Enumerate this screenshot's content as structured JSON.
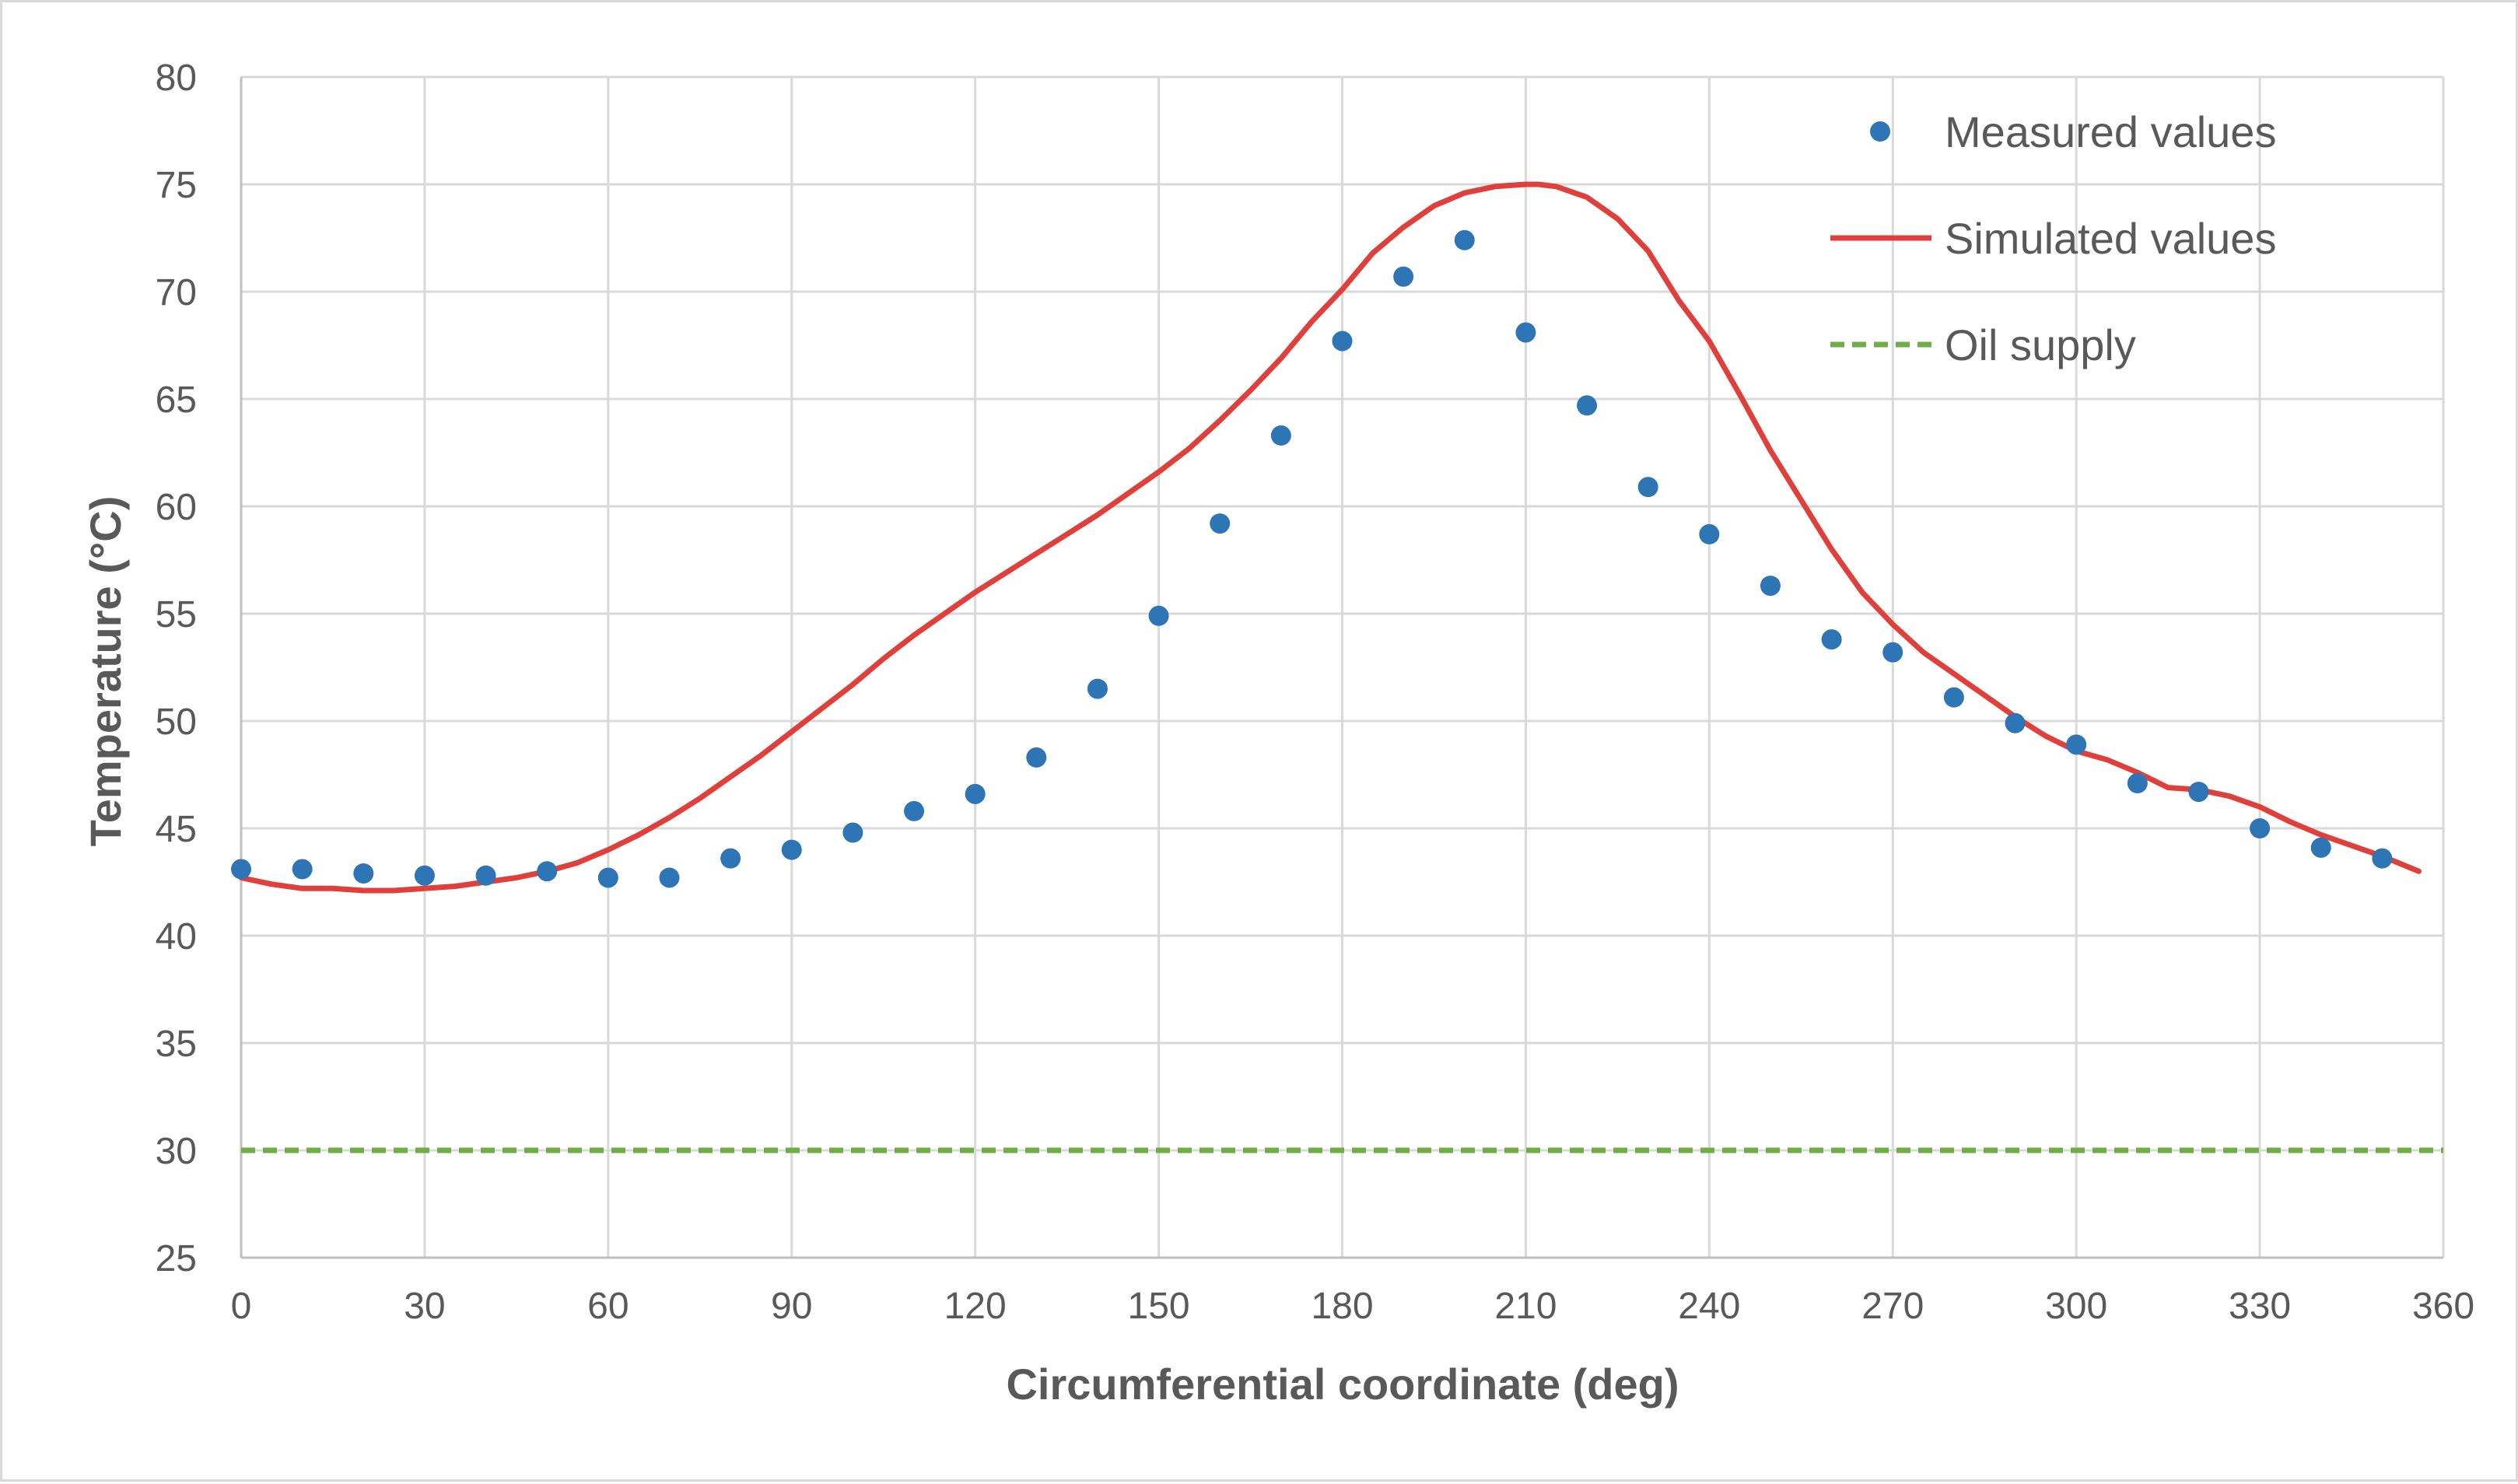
{
  "chart_data": {
    "type": "scatter",
    "title": "",
    "xlabel": "Circumferential coordinate (deg)",
    "ylabel": "Temperature (°C)",
    "xlim": [
      0,
      360
    ],
    "ylim": [
      25,
      80
    ],
    "x_ticks": [
      0,
      30,
      60,
      90,
      120,
      150,
      180,
      210,
      240,
      270,
      300,
      330,
      360
    ],
    "y_ticks": [
      25,
      30,
      35,
      40,
      45,
      50,
      55,
      60,
      65,
      70,
      75,
      80
    ],
    "grid": true,
    "legend_position": "top-right",
    "series": [
      {
        "name": "Measured values",
        "style": "markers",
        "color": "#2e75b6",
        "x": [
          0,
          10,
          20,
          30,
          40,
          50,
          60,
          70,
          80,
          90,
          100,
          110,
          120,
          130,
          140,
          150,
          160,
          170,
          180,
          190,
          200,
          210,
          220,
          230,
          240,
          250,
          260,
          270,
          280,
          290,
          300,
          310,
          320,
          330,
          340,
          350
        ],
        "y": [
          43.1,
          43.1,
          42.9,
          42.8,
          42.8,
          43.0,
          42.7,
          42.7,
          43.6,
          44.0,
          44.8,
          45.8,
          46.6,
          48.3,
          51.5,
          54.9,
          59.2,
          63.3,
          67.7,
          70.7,
          72.4,
          68.1,
          64.7,
          60.9,
          58.7,
          56.3,
          53.8,
          53.2,
          51.1,
          49.9,
          48.9,
          47.1,
          46.7,
          45.0,
          44.1,
          43.6
        ]
      },
      {
        "name": "Simulated values",
        "style": "line",
        "color": "#e0403c",
        "x": [
          0,
          5,
          10,
          15,
          20,
          25,
          30,
          35,
          40,
          45,
          50,
          55,
          60,
          65,
          70,
          75,
          80,
          85,
          90,
          95,
          100,
          105,
          110,
          115,
          120,
          125,
          130,
          135,
          140,
          145,
          150,
          155,
          160,
          165,
          170,
          175,
          180,
          185,
          190,
          195,
          200,
          205,
          210,
          212,
          215,
          220,
          225,
          230,
          235,
          240,
          245,
          250,
          255,
          260,
          265,
          270,
          275,
          280,
          285,
          290,
          295,
          300,
          305,
          310,
          315,
          320,
          325,
          330,
          335,
          340,
          345,
          350,
          356
        ],
        "y": [
          42.7,
          42.4,
          42.2,
          42.2,
          42.1,
          42.1,
          42.2,
          42.3,
          42.5,
          42.7,
          43.0,
          43.4,
          44.0,
          44.7,
          45.5,
          46.4,
          47.4,
          48.4,
          49.5,
          50.6,
          51.7,
          52.9,
          54.0,
          55.0,
          56.0,
          56.9,
          57.8,
          58.7,
          59.6,
          60.6,
          61.6,
          62.7,
          64.0,
          65.4,
          66.9,
          68.6,
          70.1,
          71.8,
          73.0,
          74.0,
          74.6,
          74.9,
          75.0,
          75.0,
          74.9,
          74.4,
          73.4,
          71.9,
          69.6,
          67.7,
          65.2,
          62.6,
          60.3,
          58.0,
          56.0,
          54.5,
          53.2,
          52.2,
          51.2,
          50.2,
          49.3,
          48.6,
          48.2,
          47.6,
          46.9,
          46.8,
          46.5,
          46.0,
          45.3,
          44.7,
          44.2,
          43.7,
          43.0
        ]
      },
      {
        "name": "Oil supply",
        "style": "dashed-line",
        "color": "#70ad47",
        "x": [
          0,
          360
        ],
        "y": [
          30,
          30
        ]
      }
    ]
  }
}
